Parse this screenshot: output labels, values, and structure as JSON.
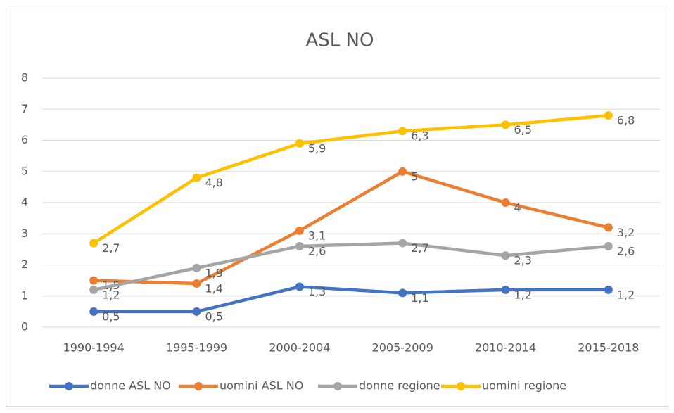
{
  "chart_data": {
    "type": "line",
    "title": "ASL  NO",
    "categories": [
      "1990-1994",
      "1995-1999",
      "2000-2004",
      "2005-2009",
      "2010-2014",
      "2015-2018"
    ],
    "series": [
      {
        "name": "donne ASL NO",
        "color": "#4472c4",
        "values": [
          0.5,
          0.5,
          1.3,
          1.1,
          1.2,
          1.2
        ],
        "value_labels": [
          "0,5",
          "0,5",
          "1,3",
          "1,1",
          "1,2",
          "1,2"
        ]
      },
      {
        "name": "uomini ASL NO",
        "color": "#ed7d31",
        "values": [
          1.5,
          1.4,
          3.1,
          5,
          4,
          3.2
        ],
        "value_labels": [
          "1,5",
          "1,4",
          "3,1",
          "5",
          "4",
          "3,2"
        ]
      },
      {
        "name": "donne regione",
        "color": "#a5a5a5",
        "values": [
          1.2,
          1.9,
          2.6,
          2.7,
          2.3,
          2.6
        ],
        "value_labels": [
          "1,2",
          "1,9",
          "2,6",
          "2,7",
          "2,3",
          "2,6"
        ]
      },
      {
        "name": "uomini regione",
        "color": "#ffc000",
        "values": [
          2.7,
          4.8,
          5.9,
          6.3,
          6.5,
          6.8
        ],
        "value_labels": [
          "2,7",
          "4,8",
          "5,9",
          "6,3",
          "6,5",
          "6,8"
        ]
      }
    ],
    "ylim": [
      0,
      8
    ],
    "yticks": [
      0,
      1,
      2,
      3,
      4,
      5,
      6,
      7,
      8
    ],
    "grid": true,
    "legend": "bottom"
  }
}
